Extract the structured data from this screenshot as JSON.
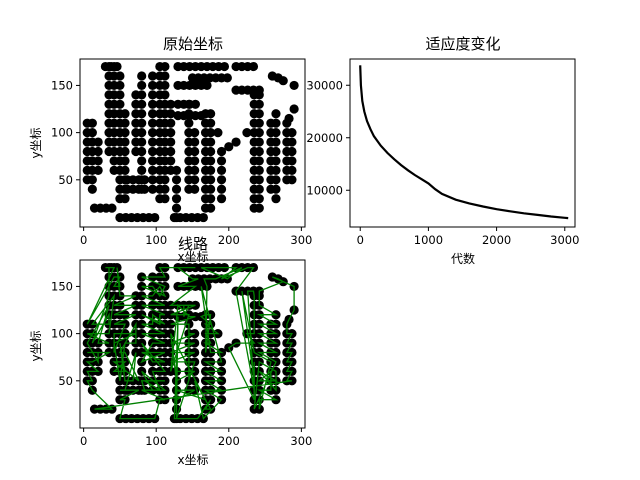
{
  "chart_data": [
    {
      "type": "scatter",
      "title": "原始坐标",
      "xlabel": "x坐标",
      "ylabel": "y坐标",
      "xlim": [
        -5,
        305
      ],
      "ylim": [
        0,
        178
      ],
      "xticks": [
        0,
        100,
        200,
        300
      ],
      "yticks": [
        50,
        100,
        150
      ],
      "marker_color": "#000000",
      "points": []
    },
    {
      "type": "line",
      "title": "适应度变化",
      "xlabel": "代数",
      "ylabel": "",
      "xlim": [
        -150,
        3150
      ],
      "ylim": [
        3000,
        35000
      ],
      "xticks": [
        0,
        1000,
        2000,
        3000
      ],
      "yticks": [
        10000,
        20000,
        30000
      ],
      "line_color": "#000000",
      "series": [
        {
          "x": [
            0,
            10,
            30,
            60,
            100,
            150,
            200,
            300,
            400,
            500,
            600,
            700,
            800,
            900,
            1000,
            1100,
            1200,
            1400,
            1600,
            1800,
            2000,
            2200,
            2400,
            2600,
            2800,
            3000,
            3050
          ],
          "y": [
            33800,
            30000,
            27000,
            25000,
            23200,
            21600,
            20300,
            18500,
            17100,
            15900,
            14800,
            13800,
            12900,
            12100,
            11300,
            10200,
            9300,
            8200,
            7500,
            6900,
            6400,
            6000,
            5600,
            5300,
            5000,
            4750,
            4700
          ]
        }
      ]
    },
    {
      "type": "line",
      "title": "线路",
      "xlabel": "x坐标",
      "ylabel": "y坐标",
      "xlim": [
        -5,
        305
      ],
      "ylim": [
        0,
        178
      ],
      "xticks": [
        0,
        100,
        200,
        300
      ],
      "yticks": [
        50,
        100,
        150
      ],
      "marker_color": "#000000",
      "line_color": "#008000",
      "points": []
    }
  ]
}
